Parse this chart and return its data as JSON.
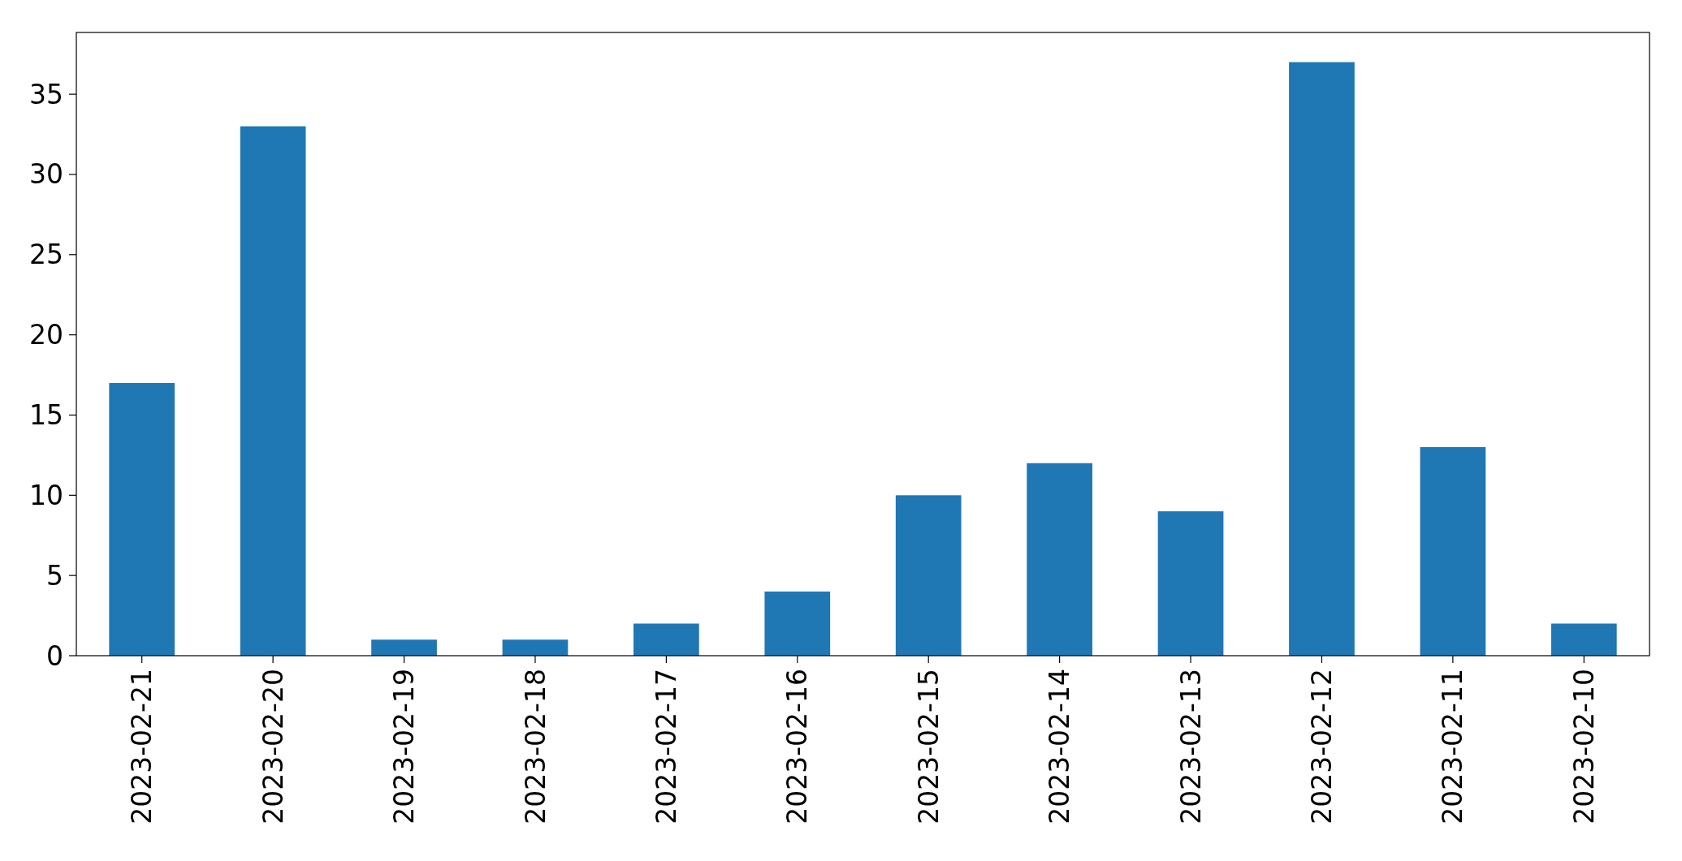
{
  "chart_data": {
    "type": "bar",
    "categories": [
      "2023-02-21",
      "2023-02-20",
      "2023-02-19",
      "2023-02-18",
      "2023-02-17",
      "2023-02-16",
      "2023-02-15",
      "2023-02-14",
      "2023-02-13",
      "2023-02-12",
      "2023-02-11",
      "2023-02-10"
    ],
    "values": [
      17,
      33,
      1,
      1,
      2,
      4,
      10,
      12,
      9,
      37,
      13,
      2
    ],
    "color": "#1f77b4",
    "ylim": [
      0,
      38.85
    ],
    "yticks": [
      0,
      5,
      10,
      15,
      20,
      25,
      30,
      35
    ],
    "grid": false
  }
}
